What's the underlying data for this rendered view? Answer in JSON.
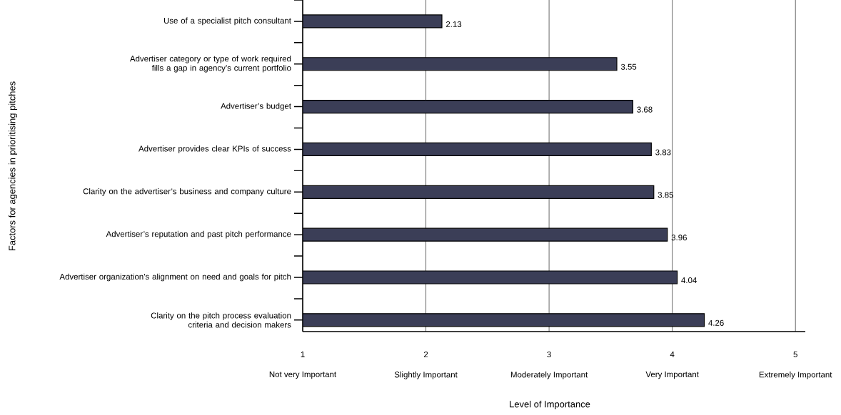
{
  "chart_data": {
    "type": "bar",
    "orientation": "horizontal",
    "ylabel": "Factors for agencies in prioritising pitches",
    "xlabel": "Level of Importance",
    "categories": [
      "Use of a specialist pitch consultant",
      "Advertiser category or type of work required fills a gap in agency’s current portfolio",
      "Advertiser’s budget",
      "Advertiser provides clear KPIs of success",
      "Clarity on the advertiser’s business and company culture",
      "Advertiser’s reputation and past pitch performance",
      "Advertiser organization’s alignment on need and goals for pitch",
      "Clarity on the pitch process evaluation criteria and decision makers"
    ],
    "values": [
      2.13,
      3.55,
      3.68,
      3.83,
      3.85,
      3.96,
      4.04,
      4.26
    ],
    "color": "#3b3e57",
    "xlim": [
      1,
      5.08
    ],
    "xticks": [
      1,
      2,
      3,
      4,
      5
    ],
    "annotations": [
      "Not very Important",
      "Slightly Important",
      "Moderately Important",
      "Very Important",
      "Extremely Important"
    ],
    "grid": "x",
    "data_labels": true
  }
}
